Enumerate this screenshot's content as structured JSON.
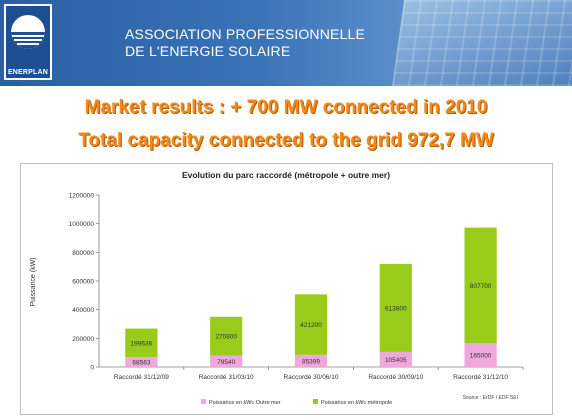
{
  "header": {
    "logo_label": "ENERPLAN",
    "association_line1": "ASSOCIATION PROFESSIONNELLE",
    "association_line2": "DE L'ENERGIE SOLAIRE",
    "colors": {
      "header_blue": "#2a5fa3",
      "headline_orange": "#f08a1c"
    }
  },
  "headline": {
    "line1": "Market results : + 700 MW connected in 2010",
    "line2": "Total capacity connected to the grid 972,7 MW"
  },
  "chart_data": {
    "type": "bar",
    "stacked": true,
    "title": "Evolution du parc raccordé (métropole + outre mer)",
    "ylabel": "Puissance (kW)",
    "xlabel": "",
    "ylim": [
      0,
      1200000
    ],
    "yticks": [
      "0",
      "200000",
      "400000",
      "600000",
      "800000",
      "1000000",
      "1200000"
    ],
    "categories": [
      "Raccordé 31/12/09",
      "Raccordé 31/03/10",
      "Raccordé 30/06/10",
      "Raccordé 30/09/10",
      "Raccordé 31/12/10"
    ],
    "series": [
      {
        "name": "Puissance en kWc Outre mer",
        "color": "#f0a8dc",
        "values": [
          68563,
          79540,
          85399,
          105405,
          165000
        ],
        "labels": [
          "68563",
          "79540",
          "85399",
          "105405",
          "165000"
        ]
      },
      {
        "name": "Puissance en kWc métropole",
        "color": "#99cc1a",
        "values": [
          199636,
          270800,
          421200,
          613800,
          807700
        ],
        "labels": [
          "199636",
          "270800",
          "421200",
          "613800",
          "807700"
        ]
      }
    ],
    "grid": false,
    "legend_position": "bottom",
    "source": "Source : ErDF / EDF SEI"
  }
}
